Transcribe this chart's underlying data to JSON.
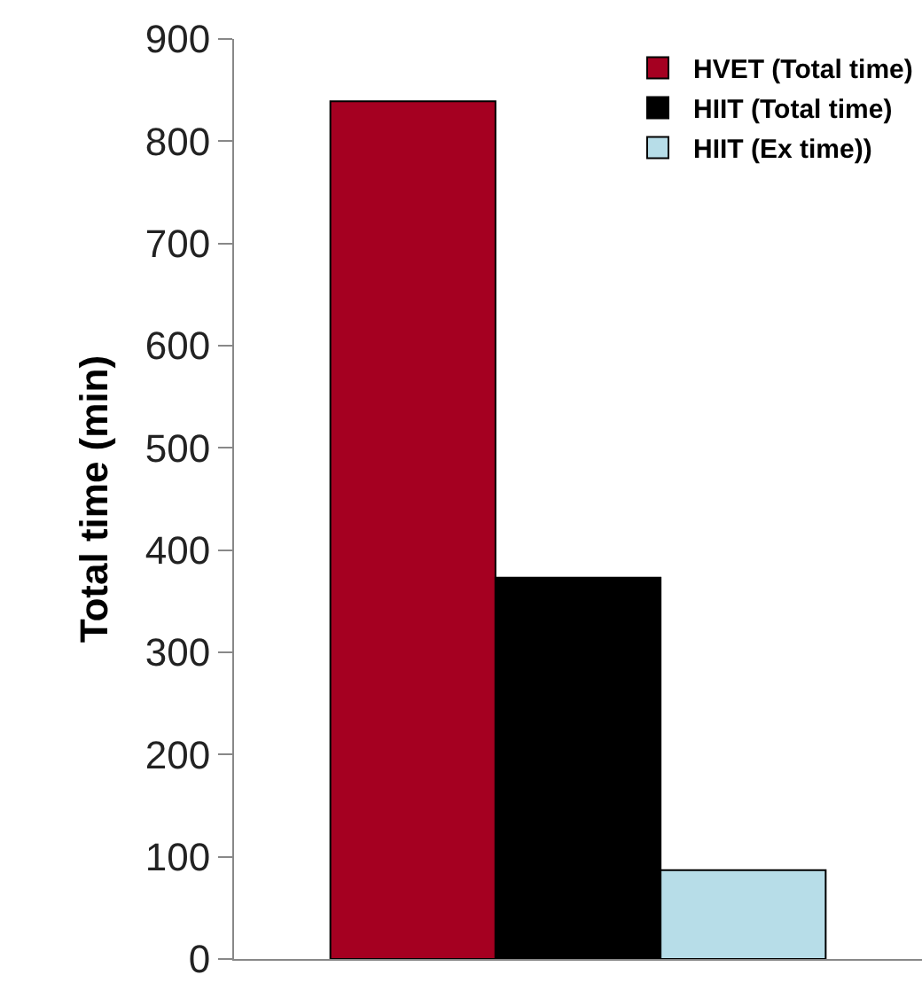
{
  "chart_data": {
    "type": "bar",
    "ylabel": "Total time (min)",
    "categories": [
      null
    ],
    "series": [
      {
        "name": "HVET (Total time)",
        "color": "#a50021",
        "values": [
          839
        ]
      },
      {
        "name": "HIIT (Total time)",
        "color": "#000000",
        "values": [
          373
        ]
      },
      {
        "name": "HIIT (Ex time))",
        "color": "#b7dde8",
        "values": [
          87
        ]
      }
    ],
    "ylim": [
      0,
      900
    ],
    "yticks": [
      0,
      100,
      200,
      300,
      400,
      500,
      600,
      700,
      800,
      900
    ],
    "grid": false,
    "legend": "top right"
  }
}
